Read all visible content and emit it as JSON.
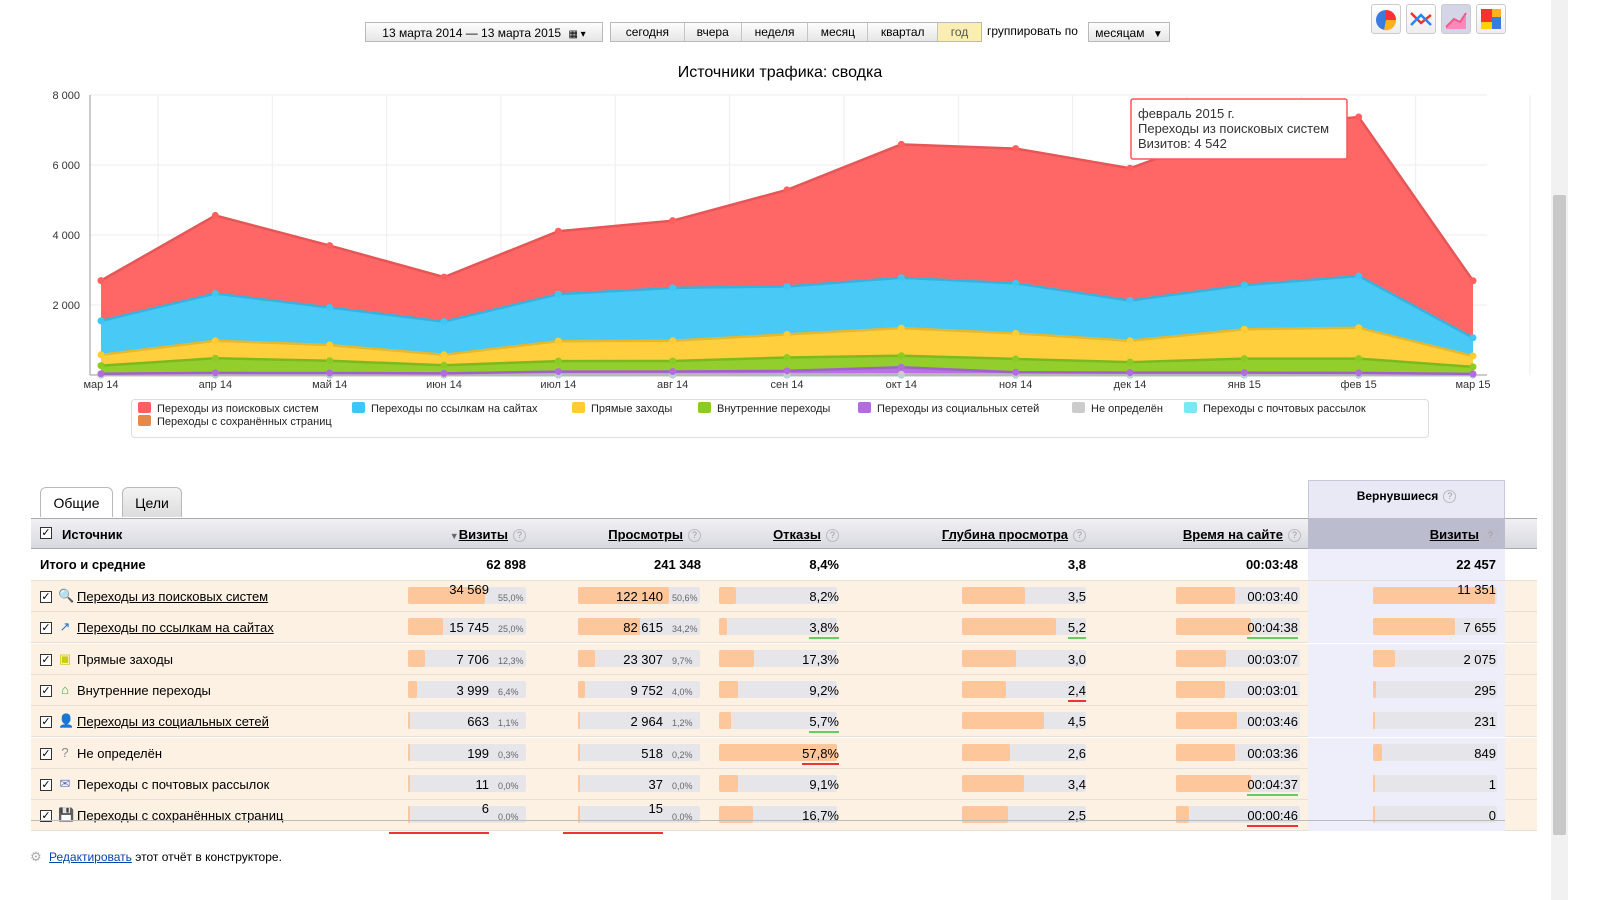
{
  "toolbar": {
    "date_range": "13 марта 2014 — 13 марта 2015",
    "periods": [
      "сегодня",
      "вчера",
      "неделя",
      "месяц",
      "квартал",
      "год"
    ],
    "active_period": "год",
    "group_label": "группировать по",
    "group_value": "месяцам"
  },
  "chart_data": {
    "type": "area",
    "title": "Источники трафика: сводка",
    "categories": [
      "мар 14",
      "апр 14",
      "май 14",
      "июн 14",
      "июл 14",
      "авг 14",
      "сен 14",
      "окт 14",
      "ноя 14",
      "дек 14",
      "янв 15",
      "фев 15",
      "мар 15"
    ],
    "yticks": [
      "2 000",
      "4 000",
      "6 000",
      "8 000"
    ],
    "ylim": [
      0,
      8000
    ],
    "stacked": true,
    "series": [
      {
        "name": "Переходы с сохранённых страниц",
        "color": "#e8874a",
        "values": [
          1,
          1,
          1,
          1,
          0,
          1,
          0,
          0,
          1,
          0,
          0,
          1,
          0
        ]
      },
      {
        "name": "Переходы с почтовых рассылок",
        "color": "#78e8f5",
        "values": [
          1,
          1,
          1,
          1,
          1,
          1,
          1,
          1,
          1,
          1,
          1,
          1,
          0
        ]
      },
      {
        "name": "Не определён",
        "color": "#cccccc",
        "values": [
          15,
          17,
          16,
          15,
          17,
          17,
          18,
          19,
          17,
          16,
          17,
          17,
          13
        ]
      },
      {
        "name": "Переходы из социальных сетей",
        "color": "#b36ce0",
        "values": [
          20,
          40,
          40,
          30,
          80,
          80,
          100,
          200,
          60,
          50,
          50,
          40,
          20
        ]
      },
      {
        "name": "Внутренние переходы",
        "color": "#8ccc22",
        "values": [
          230,
          420,
          350,
          230,
          300,
          300,
          380,
          330,
          380,
          300,
          400,
          410,
          200
        ]
      },
      {
        "name": "Прямые заходы",
        "color": "#ffcc33",
        "values": [
          310,
          500,
          450,
          300,
          570,
          580,
          660,
          790,
          730,
          610,
          840,
          880,
          310
        ]
      },
      {
        "name": "Переходы по ссылкам на сайтах",
        "color": "#3ec6f6",
        "values": [
          970,
          1350,
          1070,
          950,
          1340,
          1510,
          1370,
          1440,
          1430,
          1150,
          1260,
          1480,
          520
        ]
      },
      {
        "name": "Переходы из поисковых систем",
        "color": "#ff5f5f",
        "values": [
          1150,
          2230,
          1770,
          1270,
          1800,
          1920,
          2760,
          3810,
          3850,
          3780,
          4510,
          4542,
          1630
        ]
      }
    ],
    "tooltip": {
      "title": "февраль 2015 г.",
      "series": "Переходы из поисковых систем",
      "value": "Визитов: 4 542"
    },
    "legend": [
      "Переходы из поисковых систем",
      "Переходы по ссылкам на сайтах",
      "Прямые заходы",
      "Внутренние переходы",
      "Переходы из социальных сетей",
      "Не определён",
      "Переходы с почтовых рассылок",
      "Переходы с сохранённых страниц"
    ],
    "legend_colors": [
      "#ff5f5f",
      "#3ec6f6",
      "#ffcc33",
      "#8ccc22",
      "#b36ce0",
      "#cccccc",
      "#78e8f5",
      "#e8874a"
    ]
  },
  "tabs": {
    "general": "Общие",
    "goals": "Цели",
    "returning": "Вернувшиеся"
  },
  "table": {
    "headers": {
      "source": "Источник",
      "visits": "Визиты",
      "views": "Просмотры",
      "bounces": "Отказы",
      "depth": "Глубина просмотра",
      "time": "Время на сайте",
      "returning_visits": "Визиты"
    },
    "totals": {
      "label": "Итого и средние",
      "visits": "62 898",
      "views": "241 348",
      "bounces": "8,4%",
      "depth": "3,8",
      "time": "00:03:48",
      "returning": "22 457"
    },
    "rows": [
      {
        "label": "Переходы из поисковых систем",
        "link": true,
        "icon": "search-icon",
        "visits": "34 569",
        "visits_pct": "55,0%",
        "visits_frac": 0.55,
        "views": "122 140",
        "views_pct": "50,6%",
        "views_frac": 0.506,
        "bounce": "8,2%",
        "bounce_frac": 0.082,
        "depth": "3,5",
        "depth_frac": 0.66,
        "time": "00:03:40",
        "time_frac": 0.66,
        "returning": "11 351",
        "returning_frac": 1.0
      },
      {
        "label": "Переходы по ссылкам на сайтах",
        "link": true,
        "icon": "link-arrow-icon",
        "visits": "15 745",
        "visits_pct": "25,0%",
        "visits_frac": 0.25,
        "views": "82 615",
        "views_pct": "34,2%",
        "views_frac": 0.342,
        "bounce": "3,8%",
        "bounce_frac": 0.038,
        "depth": "5,2",
        "depth_frac": 0.99,
        "time": "00:04:38",
        "time_frac": 0.83,
        "returning": "7 655",
        "returning_frac": 0.67
      },
      {
        "label": "Прямые заходы",
        "link": false,
        "icon": "direct-entry-icon",
        "visits": "7 706",
        "visits_pct": "12,3%",
        "visits_frac": 0.123,
        "views": "23 307",
        "views_pct": "9,7%",
        "views_frac": 0.097,
        "bounce": "17,3%",
        "bounce_frac": 0.173,
        "depth": "3,0",
        "depth_frac": 0.57,
        "time": "00:03:07",
        "time_frac": 0.56,
        "returning": "2 075",
        "returning_frac": 0.18
      },
      {
        "label": "Внутренние переходы",
        "link": false,
        "icon": "home-icon",
        "visits": "3 999",
        "visits_pct": "6,4%",
        "visits_frac": 0.064,
        "views": "9 752",
        "views_pct": "4,0%",
        "views_frac": 0.04,
        "bounce": "9,2%",
        "bounce_frac": 0.092,
        "depth": "2,4",
        "depth_frac": 0.46,
        "time": "00:03:01",
        "time_frac": 0.54,
        "returning": "295",
        "returning_frac": 0.026
      },
      {
        "label": "Переходы из социальных сетей",
        "link": true,
        "icon": "social-user-icon",
        "visits": "663",
        "visits_pct": "1,1%",
        "visits_frac": 0.011,
        "views": "2 964",
        "views_pct": "1,2%",
        "views_frac": 0.012,
        "bounce": "5,7%",
        "bounce_frac": 0.057,
        "depth": "4,5",
        "depth_frac": 0.86,
        "time": "00:03:46",
        "time_frac": 0.68,
        "returning": "231",
        "returning_frac": 0.02
      },
      {
        "label": "Не определён",
        "link": false,
        "icon": "question-icon",
        "visits": "199",
        "visits_pct": "0,3%",
        "visits_frac": 0.003,
        "views": "518",
        "views_pct": "0,2%",
        "views_frac": 0.002,
        "bounce": "57,8%",
        "bounce_frac": 0.578,
        "depth": "2,6",
        "depth_frac": 0.5,
        "time": "00:03:36",
        "time_frac": 0.65,
        "returning": "849",
        "returning_frac": 0.075
      },
      {
        "label": "Переходы с почтовых рассылок",
        "link": false,
        "icon": "envelope-icon",
        "visits": "11",
        "visits_pct": "0,0%",
        "visits_frac": 0.0,
        "views": "37",
        "views_pct": "0,0%",
        "views_frac": 0.0,
        "bounce": "9,1%",
        "bounce_frac": 0.091,
        "depth": "3,4",
        "depth_frac": 0.65,
        "time": "00:04:37",
        "time_frac": 0.83,
        "returning": "1",
        "returning_frac": 0.0
      },
      {
        "label": "Переходы с сохранённых страниц",
        "link": false,
        "icon": "floppy-disk-icon",
        "visits": "6",
        "visits_pct": "0,0%",
        "visits_frac": 0.0,
        "views": "15",
        "views_pct": "0,0%",
        "views_frac": 0.0,
        "bounce": "16,7%",
        "bounce_frac": 0.167,
        "depth": "2,5",
        "depth_frac": 0.48,
        "time": "00:00:46",
        "time_frac": 0.14,
        "returning": "0",
        "returning_frac": 0.0
      }
    ]
  },
  "footer": {
    "edit_link": "Редактировать",
    "edit_rest": "этот отчёт в конструкторе."
  }
}
